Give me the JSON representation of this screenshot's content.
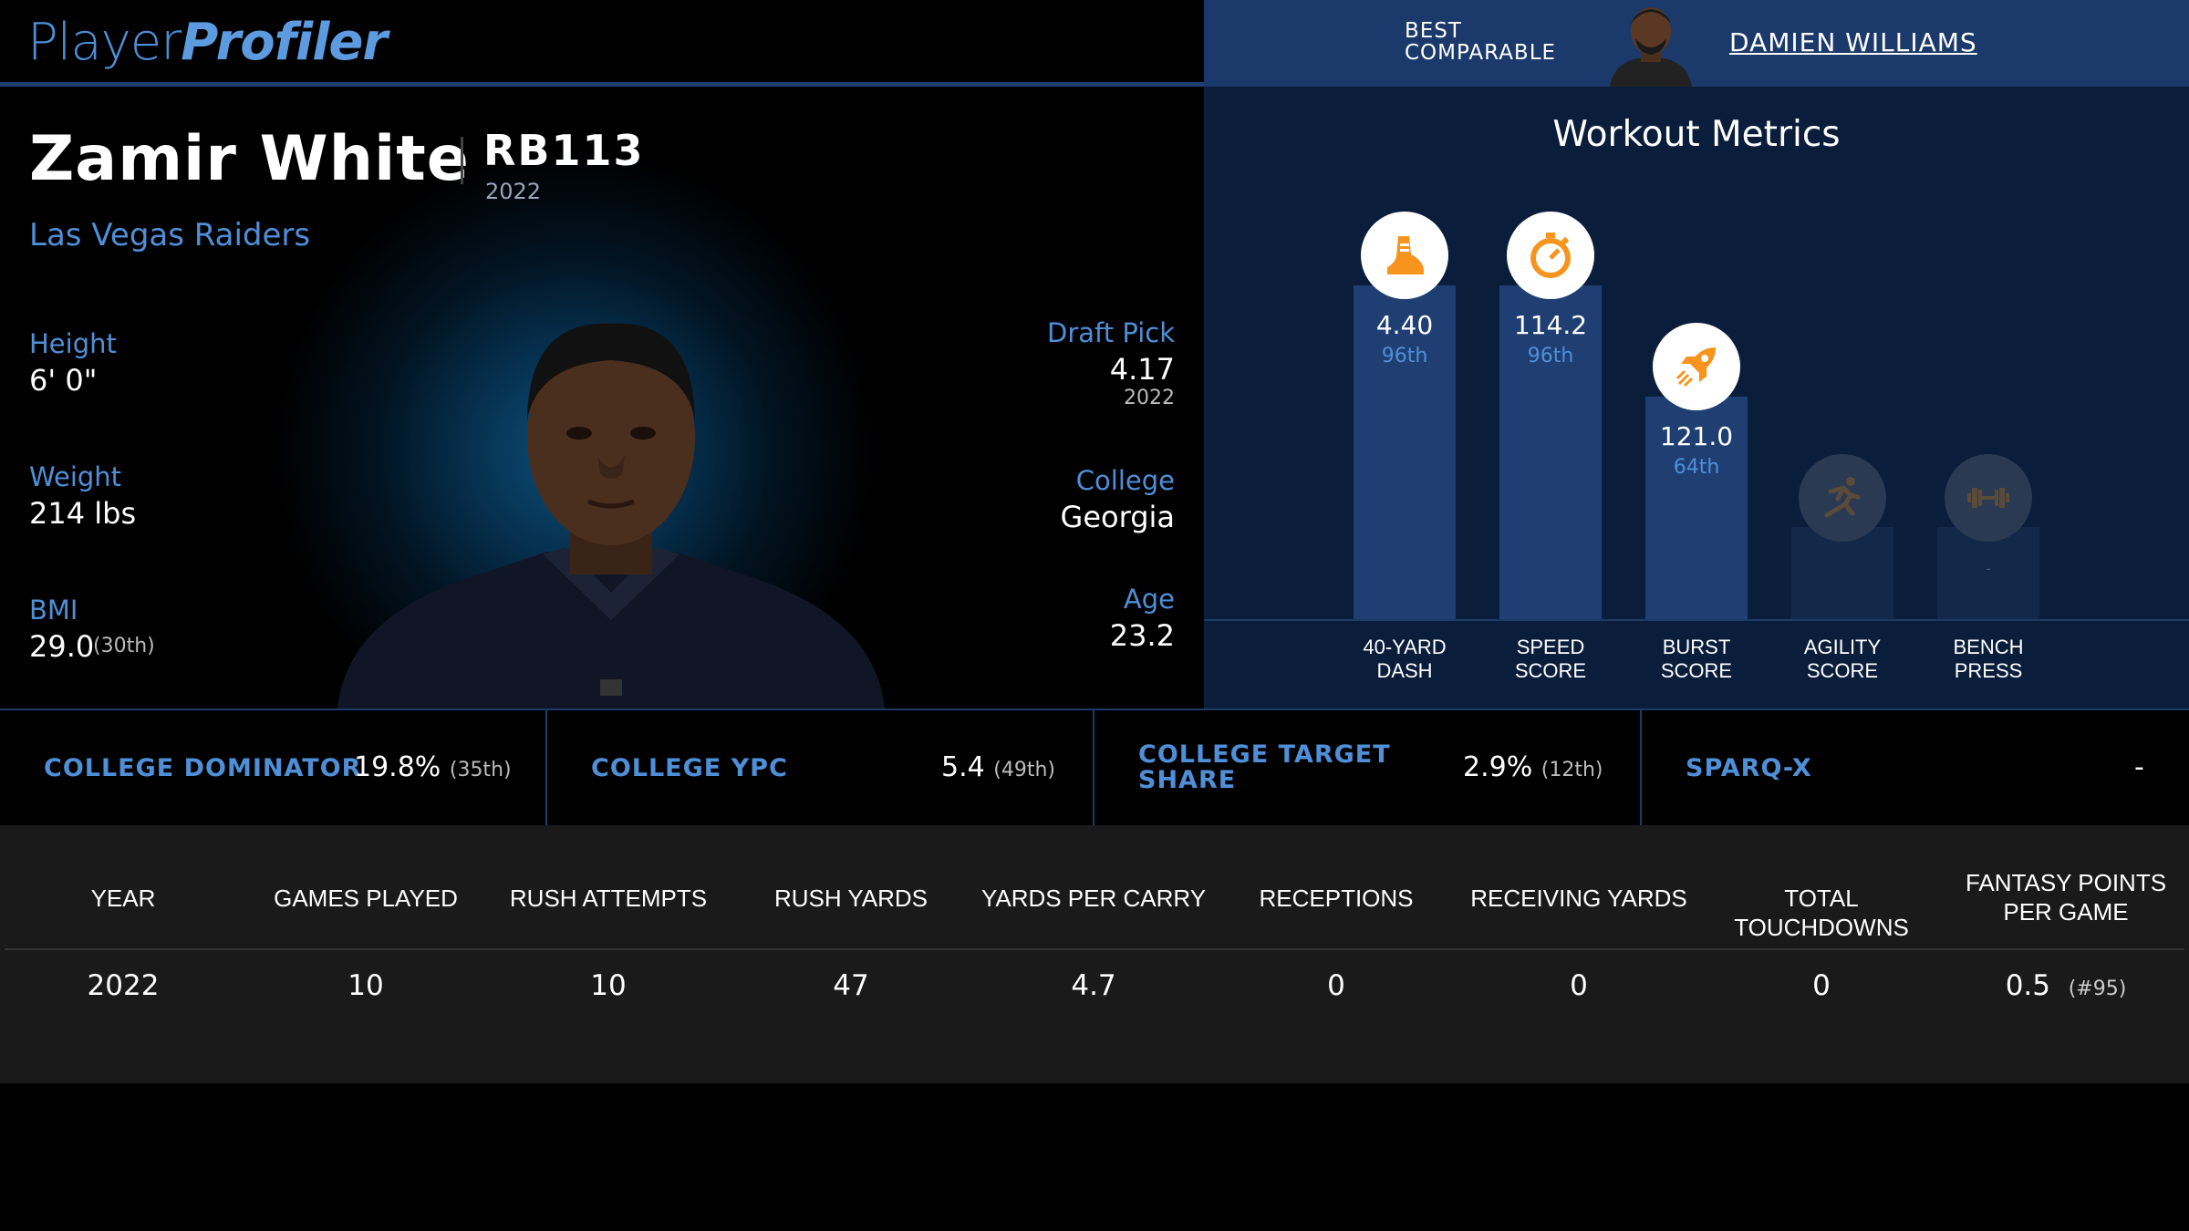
{
  "brand": {
    "part1": "Player",
    "part2": "Profiler"
  },
  "comparable": {
    "label_line1": "BEST",
    "label_line2": "COMPARABLE",
    "name": "DAMIEN WILLIAMS"
  },
  "player": {
    "name": "Zamir White",
    "position_rank": "RB113",
    "rank_year": "2022",
    "team": "Las Vegas Raiders",
    "height_label": "Height",
    "height": "6' 0\"",
    "weight_label": "Weight",
    "weight": "214 lbs",
    "bmi_label": "BMI",
    "bmi": "29.0",
    "bmi_rank": "(30th)",
    "draft_label": "Draft Pick",
    "draft_pick": "4.17",
    "draft_year": "2022",
    "college_label": "College",
    "college": "Georgia",
    "age_label": "Age",
    "age": "23.2"
  },
  "workout": {
    "title": "Workout Metrics",
    "bars": [
      {
        "label1": "40-YARD",
        "label2": "DASH",
        "value": "4.40",
        "pct": "96th",
        "percentile": 96,
        "icon": "shoe-icon",
        "active": true
      },
      {
        "label1": "SPEED",
        "label2": "SCORE",
        "value": "114.2",
        "pct": "96th",
        "percentile": 96,
        "icon": "stopwatch-icon",
        "active": true
      },
      {
        "label1": "BURST",
        "label2": "SCORE",
        "value": "121.0",
        "pct": "64th",
        "percentile": 64,
        "icon": "rocket-icon",
        "active": true
      },
      {
        "label1": "AGILITY",
        "label2": "SCORE",
        "value": "",
        "pct": "",
        "percentile": 0,
        "icon": "runner-icon",
        "active": false
      },
      {
        "label1": "BENCH",
        "label2": "PRESS",
        "value": "-",
        "pct": "",
        "percentile": 0,
        "icon": "dumbbell-icon",
        "active": false
      }
    ]
  },
  "metrics": [
    {
      "label": "COLLEGE DOMINATOR",
      "value": "19.8%",
      "rank": "(35th)"
    },
    {
      "label": "COLLEGE YPC",
      "value": "5.4",
      "rank": "(49th)"
    },
    {
      "label1": "COLLEGE TARGET",
      "label2": "SHARE",
      "value": "2.9%",
      "rank": "(12th)"
    },
    {
      "label": "SPARQ-X",
      "value": "-",
      "rank": ""
    }
  ],
  "table": {
    "headers": [
      "YEAR",
      "GAMES PLAYED",
      "RUSH ATTEMPTS",
      "RUSH YARDS",
      "YARDS PER CARRY",
      "RECEPTIONS",
      "RECEIVING YARDS",
      "TOTAL TOUCHDOWNS",
      "FANTASY POINTS PER GAME"
    ],
    "row": [
      "2022",
      "10",
      "10",
      "47",
      "4.7",
      "0",
      "0",
      "0",
      "0.5"
    ],
    "last_rank": "(#95)"
  },
  "colors": {
    "accent": "#4f8fd8",
    "bar": "#1f3f73",
    "orange": "#f7941d"
  }
}
